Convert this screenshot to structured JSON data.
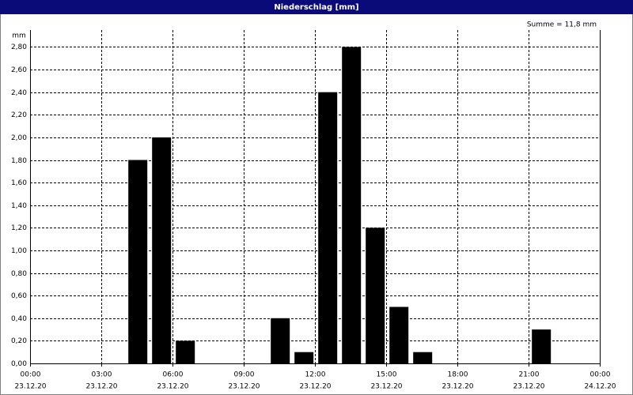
{
  "chart_data": {
    "type": "bar",
    "title": "Niederschlag [mm]",
    "y_unit": "mm",
    "annotation": "Summe = 11,8 mm",
    "x": [
      4,
      5,
      6,
      10,
      11,
      12,
      13,
      14,
      15,
      16,
      21
    ],
    "values": [
      1.8,
      2.0,
      0.2,
      0.4,
      0.1,
      2.4,
      2.8,
      1.2,
      0.5,
      0.1,
      0.3
    ],
    "color": "#000000",
    "bar_hours": 1,
    "xlim": [
      0,
      24
    ],
    "xticks": [
      {
        "value": 0,
        "label": "00:00"
      },
      {
        "value": 3,
        "label": "03:00"
      },
      {
        "value": 6,
        "label": "06:00"
      },
      {
        "value": 9,
        "label": "09:00"
      },
      {
        "value": 12,
        "label": "12:00"
      },
      {
        "value": 15,
        "label": "15:00"
      },
      {
        "value": 18,
        "label": "18:00"
      },
      {
        "value": 21,
        "label": "21:00"
      },
      {
        "value": 24,
        "label": "00:00"
      }
    ],
    "xtick_dates": [
      "23.12.20",
      "23.12.20",
      "23.12.20",
      "23.12.20",
      "23.12.20",
      "23.12.20",
      "23.12.20",
      "23.12.20",
      "24.12.20"
    ],
    "ylim": [
      0,
      2.95
    ],
    "yticks": [
      {
        "value": 0,
        "label": "0,00"
      },
      {
        "value": 0.2,
        "label": "0,20"
      },
      {
        "value": 0.4,
        "label": "0,40"
      },
      {
        "value": 0.6,
        "label": "0,60"
      },
      {
        "value": 0.8,
        "label": "0,80"
      },
      {
        "value": 1.0,
        "label": "1,00"
      },
      {
        "value": 1.2,
        "label": "1,20"
      },
      {
        "value": 1.4,
        "label": "1,40"
      },
      {
        "value": 1.6,
        "label": "1,60"
      },
      {
        "value": 1.8,
        "label": "1,80"
      },
      {
        "value": 2.0,
        "label": "2,00"
      },
      {
        "value": 2.2,
        "label": "2,20"
      },
      {
        "value": 2.4,
        "label": "2,40"
      },
      {
        "value": 2.6,
        "label": "2,60"
      },
      {
        "value": 2.8,
        "label": "2,80"
      }
    ],
    "grid": true
  }
}
